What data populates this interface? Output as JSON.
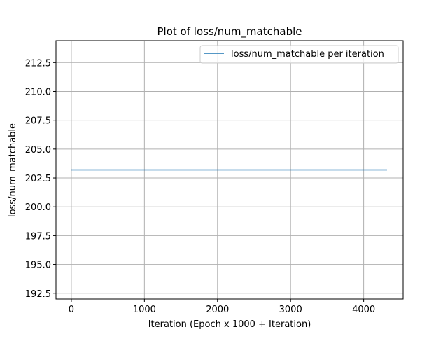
{
  "chart_data": {
    "type": "line",
    "title": "Plot of loss/num_matchable",
    "xlabel": "Iteration (Epoch x 1000 + Iteration)",
    "ylabel": "loss/num_matchable",
    "xlim": [
      -210,
      4540
    ],
    "ylim": [
      192.0,
      214.4
    ],
    "x_ticks": [
      0,
      1000,
      2000,
      3000,
      4000
    ],
    "x_tick_labels": [
      "0",
      "1000",
      "2000",
      "3000",
      "4000"
    ],
    "y_ticks": [
      192.5,
      195.0,
      197.5,
      200.0,
      202.5,
      205.0,
      207.5,
      210.0,
      212.5
    ],
    "y_tick_labels": [
      "192.5",
      "195.0",
      "197.5",
      "200.0",
      "202.5",
      "205.0",
      "207.5",
      "210.0",
      "212.5"
    ],
    "grid": true,
    "legend_position": "upper right",
    "series": [
      {
        "name": "loss/num_matchable per iteration",
        "color": "#1f77b4",
        "x": [
          0,
          4320
        ],
        "y": [
          203.2,
          203.2
        ]
      }
    ]
  }
}
